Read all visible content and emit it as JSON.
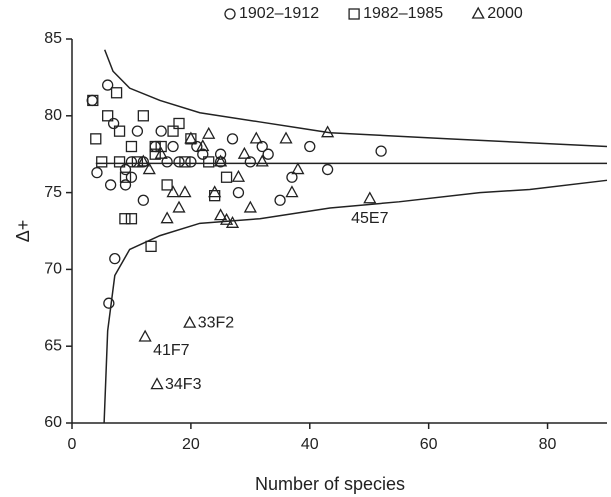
{
  "chart_data": {
    "type": "scatter",
    "xlabel": "Number of species",
    "ylabel": "Δ+",
    "xlim": [
      0,
      90
    ],
    "ylim": [
      60,
      85
    ],
    "xticks": [
      0,
      20,
      40,
      60,
      80
    ],
    "yticks": [
      60,
      65,
      70,
      75,
      80,
      85
    ],
    "series": [
      {
        "name": "1902–1912",
        "marker": "circle",
        "color": "#222",
        "x": [
          3.4,
          6,
          7,
          6.5,
          7.2,
          6.2,
          4.2,
          9,
          10,
          10,
          12,
          11,
          14,
          15,
          16,
          17,
          18,
          20,
          21,
          22,
          25,
          25,
          27,
          28,
          30,
          32,
          33,
          35,
          37,
          40,
          43,
          52,
          12,
          9
        ],
        "values": [
          81,
          82,
          79.5,
          75.5,
          70.7,
          67.8,
          76.3,
          75.5,
          76,
          77,
          77,
          79,
          78,
          79,
          77,
          78,
          77,
          77,
          78,
          77.5,
          77.5,
          77,
          78.5,
          75,
          77,
          78,
          77.5,
          74.5,
          76,
          78,
          76.5,
          77.7,
          74.5,
          76.5
        ]
      },
      {
        "name": "1982–1985",
        "marker": "square",
        "color": "#222",
        "x": [
          3.5,
          4,
          5,
          6,
          7.5,
          8,
          8,
          9,
          8.9,
          10,
          11,
          12,
          13.3,
          14,
          15,
          16,
          17,
          18,
          19,
          20,
          23,
          24,
          26,
          10,
          14
        ],
        "values": [
          81,
          78.5,
          77,
          80,
          81.5,
          79,
          77,
          76,
          73.3,
          73.3,
          77,
          80,
          71.5,
          78,
          78,
          75.5,
          79,
          79.5,
          77,
          78.5,
          77,
          74.8,
          76,
          78,
          77.5
        ]
      },
      {
        "name": "2000",
        "marker": "triangle",
        "color": "#222",
        "x": [
          12,
          13,
          15,
          16,
          17,
          18,
          19,
          20,
          22,
          23,
          24,
          25,
          25,
          26,
          27,
          28,
          29,
          30,
          31,
          32,
          36,
          37,
          38,
          43,
          50.1,
          19.8,
          12.3,
          14.3
        ],
        "values": [
          77,
          76.5,
          77.5,
          73.3,
          75,
          74,
          75,
          78.5,
          78,
          78.8,
          75,
          73.5,
          77,
          73.2,
          73,
          76,
          77.5,
          74,
          78.5,
          77,
          78.5,
          75,
          76.5,
          78.9,
          74.6,
          66.5,
          65.6,
          62.5
        ]
      }
    ],
    "lines": [
      {
        "x": [
          5.5,
          6.9,
          9.7,
          14.8,
          21.5,
          31.6,
          43.4,
          63.5,
          90
        ],
        "values": [
          84.3,
          82.9,
          81.8,
          81,
          80.2,
          79.6,
          78.9,
          78.5,
          78
        ]
      },
      {
        "x": [
          4,
          90
        ],
        "values": [
          76.9,
          76.9
        ]
      },
      {
        "x": [
          5.4,
          6,
          7.2,
          9.7,
          14.8,
          21.5,
          31.6,
          43.4,
          55,
          68.6,
          77,
          90
        ],
        "values": [
          60,
          66,
          69.6,
          71.3,
          72.2,
          73,
          73.3,
          74,
          74.4,
          75,
          75.2,
          75.8
        ]
      }
    ],
    "annotations": [
      {
        "text": "45E7",
        "x": 50.1,
        "y": 74.6,
        "position": "below"
      },
      {
        "text": "33F2",
        "x": 19.8,
        "y": 66.5,
        "position": "right"
      },
      {
        "text": "41F7",
        "x": 12.3,
        "y": 65.6,
        "position": "below-right"
      },
      {
        "text": "34F3",
        "x": 14.3,
        "y": 62.5,
        "position": "right"
      }
    ]
  }
}
